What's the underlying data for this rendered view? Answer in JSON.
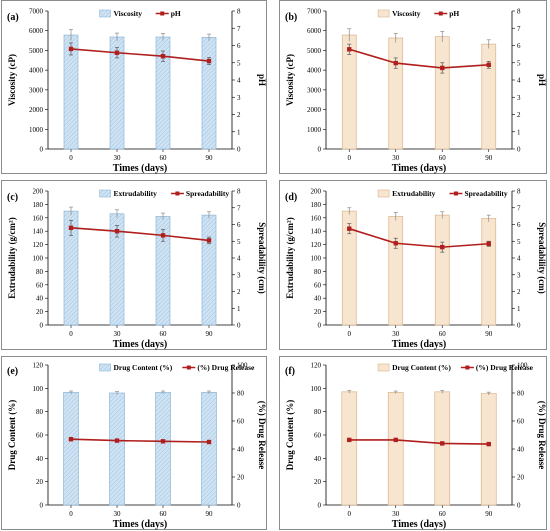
{
  "colors": {
    "bar_blue_fill": "#cfe3f3",
    "bar_blue_edge": "#8fb7d8",
    "bar_tan_fill": "#f7e5d0",
    "bar_tan_edge": "#d9b48a",
    "line": "#b01e1e",
    "error_bar": "#8a8a8a"
  },
  "chart_data": [
    {
      "type": "bar",
      "panel_label": "(a)",
      "bar_style": "blue-hatched",
      "categories": [
        "0",
        "30",
        "60",
        "90"
      ],
      "xlabel": "Times (days)",
      "ylabel": "Viscosity (cP)",
      "ylabel2": "pH",
      "ylim": [
        0,
        7000
      ],
      "yticks": [
        "0",
        "1000",
        "2000",
        "3000",
        "4000",
        "5000",
        "6000",
        "7000"
      ],
      "ylim2": [
        0,
        8
      ],
      "yticks2": [
        "0",
        "1",
        "2",
        "3",
        "4",
        "5",
        "6",
        "7",
        "8"
      ],
      "legend_position": "top-center",
      "series": [
        {
          "name": "Viscosity",
          "kind": "bar",
          "values": [
            5780,
            5680,
            5680,
            5660
          ],
          "errors": [
            280,
            200,
            180,
            170
          ]
        },
        {
          "name": "pH",
          "kind": "line",
          "values": [
            5.8,
            5.58,
            5.38,
            5.1
          ],
          "errors": [
            0.35,
            0.3,
            0.3,
            0.2
          ]
        }
      ]
    },
    {
      "type": "bar",
      "panel_label": "(b)",
      "bar_style": "tan",
      "categories": [
        "0",
        "30",
        "60",
        "90"
      ],
      "xlabel": "Times (days)",
      "ylabel": "Viscosity (cP)",
      "ylabel2": "pH",
      "ylim": [
        0,
        7000
      ],
      "yticks": [
        "0",
        "1000",
        "2000",
        "3000",
        "4000",
        "5000",
        "6000",
        "7000"
      ],
      "ylim2": [
        0,
        8
      ],
      "yticks2": [
        "0",
        "1",
        "2",
        "3",
        "4",
        "5",
        "6",
        "7",
        "8"
      ],
      "legend_position": "top-center",
      "series": [
        {
          "name": "Viscosity",
          "kind": "bar",
          "values": [
            5780,
            5630,
            5700,
            5320
          ],
          "errors": [
            320,
            230,
            270,
            220
          ]
        },
        {
          "name": "pH",
          "kind": "line",
          "values": [
            5.78,
            4.98,
            4.7,
            4.88
          ],
          "errors": [
            0.3,
            0.3,
            0.3,
            0.2
          ]
        }
      ]
    },
    {
      "type": "bar",
      "panel_label": "(c)",
      "bar_style": "blue-hatched",
      "categories": [
        "0",
        "30",
        "60",
        "90"
      ],
      "xlabel": "Times (days)",
      "ylabel": "Extrudability (g/cm²)",
      "ylabel2": "Spreadability (cm)",
      "ylim": [
        0,
        200
      ],
      "yticks": [
        "0",
        "20",
        "40",
        "60",
        "80",
        "100",
        "120",
        "140",
        "160",
        "180",
        "200"
      ],
      "ylim2": [
        0,
        8
      ],
      "yticks2": [
        "0",
        "1",
        "2",
        "3",
        "4",
        "5",
        "6",
        "7",
        "8"
      ],
      "legend_position": "top-center",
      "series": [
        {
          "name": "Extrudability",
          "kind": "bar",
          "values": [
            170,
            166,
            162,
            164
          ],
          "errors": [
            6,
            6,
            5,
            5
          ]
        },
        {
          "name": "Spreadability",
          "kind": "line",
          "values": [
            5.8,
            5.6,
            5.35,
            5.05
          ],
          "errors": [
            0.45,
            0.35,
            0.35,
            0.2
          ]
        }
      ]
    },
    {
      "type": "bar",
      "panel_label": "(d)",
      "bar_style": "tan",
      "categories": [
        "0",
        "30",
        "60",
        "90"
      ],
      "xlabel": "Times (days)",
      "ylabel": "Extrudability (g/cm²)",
      "ylabel2": "Spreadability (cm)",
      "ylim": [
        0,
        200
      ],
      "yticks": [
        "0",
        "20",
        "40",
        "60",
        "80",
        "100",
        "120",
        "140",
        "160",
        "180",
        "200"
      ],
      "ylim2": [
        0,
        8
      ],
      "yticks2": [
        "0",
        "1",
        "2",
        "3",
        "4",
        "5",
        "6",
        "7",
        "8"
      ],
      "legend_position": "top-center",
      "series": [
        {
          "name": "Extrudability",
          "kind": "bar",
          "values": [
            170,
            162,
            164,
            159
          ],
          "errors": [
            5,
            6,
            5,
            5
          ]
        },
        {
          "name": "Spreadability",
          "kind": "line",
          "values": [
            5.75,
            4.88,
            4.65,
            4.85
          ],
          "errors": [
            0.3,
            0.3,
            0.3,
            0.15
          ]
        }
      ]
    },
    {
      "type": "bar",
      "panel_label": "(e)",
      "bar_style": "blue-hatched",
      "categories": [
        "0",
        "30",
        "60",
        "90"
      ],
      "xlabel": "Times (days)",
      "ylabel": "Drug Content (%)",
      "ylabel2": "(%) Drug Release",
      "ylim": [
        0,
        120
      ],
      "yticks": [
        "0",
        "20",
        "40",
        "60",
        "80",
        "100",
        "120"
      ],
      "ylim2": [
        0,
        100
      ],
      "yticks2": [
        "0",
        "20",
        "40",
        "60",
        "80",
        "100"
      ],
      "legend_position": "top-center",
      "series": [
        {
          "name": "Drug Content (%)",
          "kind": "bar",
          "values": [
            96.5,
            96,
            96.5,
            96.5
          ],
          "errors": [
            1.2,
            1.2,
            1.2,
            1.2
          ]
        },
        {
          "name": "(%) Drug Release",
          "kind": "line",
          "values": [
            47,
            46,
            45.5,
            45
          ],
          "errors": [
            1,
            1,
            1,
            1
          ]
        }
      ]
    },
    {
      "type": "bar",
      "panel_label": "(f)",
      "bar_style": "tan",
      "categories": [
        "0",
        "30",
        "60",
        "90"
      ],
      "xlabel": "Times (days)",
      "ylabel": "Drug Content (%)",
      "ylabel2": "(%) Drug Release",
      "ylim": [
        0,
        120
      ],
      "yticks": [
        "0",
        "20",
        "40",
        "60",
        "80",
        "100",
        "120"
      ],
      "ylim2": [
        0,
        100
      ],
      "yticks2": [
        "0",
        "20",
        "40",
        "60",
        "80",
        "100"
      ],
      "legend_position": "top-center",
      "series": [
        {
          "name": "Drug Content (%)",
          "kind": "bar",
          "values": [
            97,
            96.5,
            97,
            95.5
          ],
          "errors": [
            1.2,
            1.2,
            1.2,
            1.2
          ]
        },
        {
          "name": "(%) Drug Release",
          "kind": "line",
          "values": [
            46.5,
            46.5,
            44,
            43.5
          ],
          "errors": [
            1,
            1,
            1,
            1
          ]
        }
      ]
    }
  ]
}
